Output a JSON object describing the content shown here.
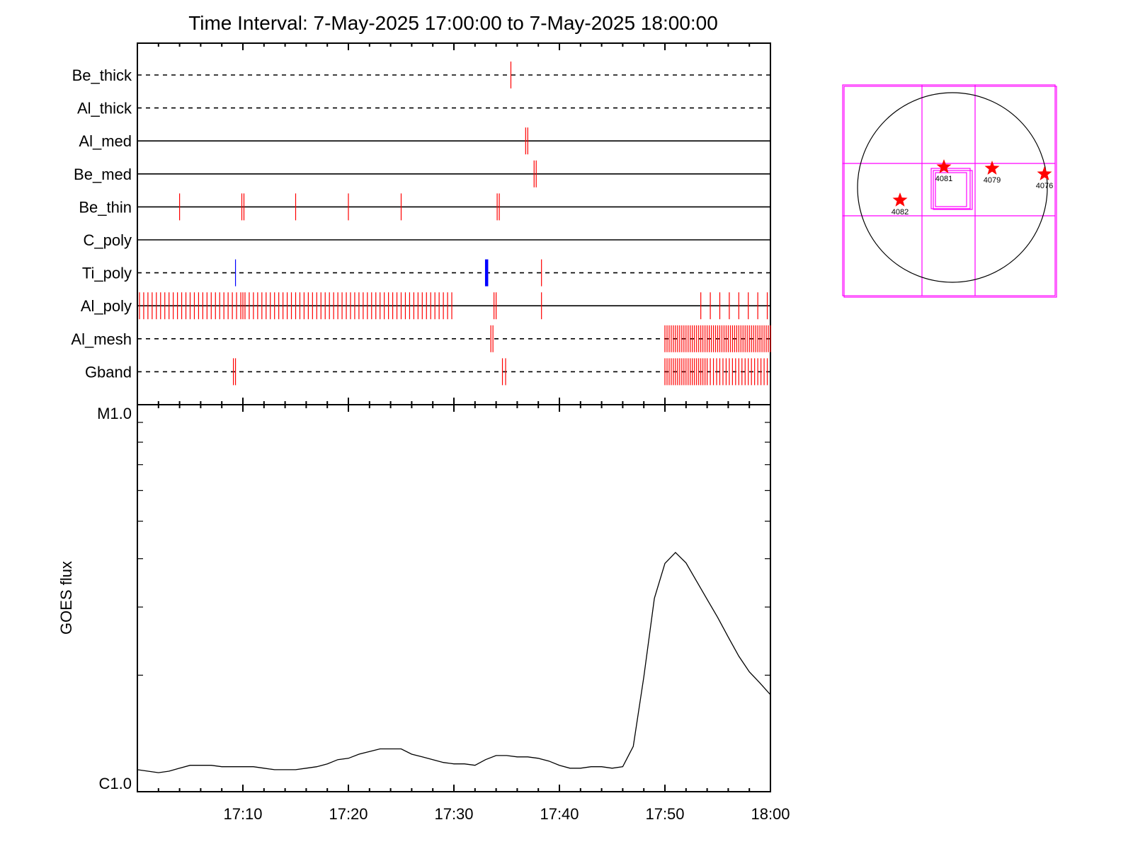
{
  "title": "Time Interval:  7-May-2025 17:00:00 to  7-May-2025 18:00:00",
  "chart_data": [
    {
      "type": "scatter",
      "subtitle": "",
      "x_range_minutes": [
        0,
        60
      ],
      "filters": [
        "Be_thick",
        "Al_thick",
        "Al_med",
        "Be_med",
        "Be_thin",
        "C_poly",
        "Ti_poly",
        "Al_poly",
        "Al_mesh",
        "Gband"
      ],
      "line_styles": [
        "dashed",
        "dashed",
        "solid",
        "solid",
        "solid",
        "solid",
        "dashed",
        "solid",
        "dashed",
        "dashed"
      ],
      "colors": {
        "red": "#ff0000",
        "blue": "#0000ff",
        "magenta": "#ff00ff"
      },
      "events": [
        {
          "filter": "Be_thick",
          "color": "red",
          "minutes": [
            35.4
          ]
        },
        {
          "filter": "Al_thick",
          "color": "red",
          "minutes": []
        },
        {
          "filter": "Al_med",
          "color": "red",
          "minutes": [
            36.8,
            37.0
          ]
        },
        {
          "filter": "Be_med",
          "color": "red",
          "minutes": [
            37.6,
            37.8
          ]
        },
        {
          "filter": "Be_thin",
          "color": "red",
          "minutes": [
            4.0,
            9.9,
            10.1,
            15.0,
            20.0,
            25.0,
            34.1,
            34.3
          ]
        },
        {
          "filter": "C_poly",
          "color": "red",
          "minutes": []
        },
        {
          "filter": "Ti_poly",
          "color": "blue",
          "minutes": [
            9.3
          ]
        },
        {
          "filter": "Ti_poly",
          "color": "blue-thick",
          "minutes": [
            33.1
          ]
        },
        {
          "filter": "Ti_poly",
          "color": "red",
          "minutes": [
            38.3
          ]
        },
        {
          "filter": "Al_poly",
          "color": "red",
          "minutes": [
            0.2,
            0.6,
            1.0,
            1.4,
            1.8,
            2.2,
            2.6,
            3.0,
            3.4,
            3.8,
            4.2,
            4.6,
            5.0,
            5.4,
            5.8,
            6.2,
            6.6,
            7.0,
            7.4,
            7.8,
            8.2,
            8.6,
            9.0,
            9.4,
            9.8,
            10.0,
            10.2,
            10.6,
            11.0,
            11.4,
            11.8,
            12.2,
            12.6,
            13.0,
            13.4,
            13.8,
            14.2,
            14.6,
            15.0,
            15.4,
            15.8,
            16.2,
            16.6,
            17.0,
            17.4,
            17.8,
            18.2,
            18.6,
            19.0,
            19.4,
            19.8,
            20.2,
            20.6,
            21.0,
            21.4,
            21.8,
            22.2,
            22.6,
            23.0,
            23.4,
            23.8,
            24.2,
            24.6,
            25.0,
            25.4,
            25.8,
            26.2,
            26.6,
            27.0,
            27.4,
            27.8,
            28.2,
            28.6,
            29.0,
            29.4,
            29.8,
            33.8,
            34.0,
            38.3,
            53.4,
            54.3,
            55.2,
            56.1,
            57.0,
            57.9,
            58.8,
            59.7
          ]
        },
        {
          "filter": "Al_mesh",
          "color": "red",
          "minutes": [
            33.5,
            33.7,
            50.0,
            50.2,
            50.4,
            50.6,
            50.8,
            51.0,
            51.2,
            51.4,
            51.6,
            51.8,
            52.0,
            52.2,
            52.4,
            52.6,
            52.8,
            53.0,
            53.2,
            53.4,
            53.6,
            53.8,
            54.0,
            54.2,
            54.4,
            54.6,
            54.8,
            55.0,
            55.2,
            55.4,
            55.6,
            55.8,
            56.0,
            56.2,
            56.4,
            56.6,
            56.8,
            57.0,
            57.2,
            57.4,
            57.6,
            57.8,
            58.0,
            58.2,
            58.4,
            58.6,
            58.8,
            59.0,
            59.2,
            59.4,
            59.6,
            59.8,
            60.0
          ]
        },
        {
          "filter": "Gband",
          "color": "red",
          "minutes": [
            9.1,
            9.3,
            34.6,
            34.9,
            50.0,
            50.2,
            50.4,
            50.6,
            50.8,
            51.0,
            51.2,
            51.4,
            51.6,
            51.8,
            52.0,
            52.2,
            52.4,
            52.6,
            52.8,
            53.0,
            53.2,
            53.4,
            53.6,
            53.8,
            54.0,
            54.3,
            54.6,
            54.9,
            55.2,
            55.5,
            55.8,
            56.1,
            56.4,
            56.7,
            57.0,
            57.3,
            57.6,
            57.9,
            58.2,
            58.5,
            58.8,
            59.1,
            59.4,
            59.7
          ]
        }
      ]
    },
    {
      "type": "line",
      "ylabel": "GOES flux",
      "xlabel": "",
      "x_tick_labels": [
        "17:10",
        "17:20",
        "17:30",
        "17:40",
        "17:50",
        "18:00"
      ],
      "x_tick_minutes": [
        10,
        20,
        30,
        40,
        50,
        60
      ],
      "y_tick_labels": [
        "M1.0",
        "C1.0"
      ],
      "y_log_scale": true,
      "ylim": [
        1e-06,
        1e-05
      ],
      "x_range_minutes": [
        0,
        60
      ],
      "series": [
        {
          "x": [
            0,
            1,
            2,
            3,
            4,
            5,
            6,
            7,
            8,
            9,
            10,
            11,
            12,
            13,
            14,
            15,
            16,
            17,
            18,
            19,
            20,
            21,
            22,
            23,
            24,
            25,
            26,
            27,
            28,
            29,
            30,
            31,
            32,
            33,
            34,
            35,
            36,
            37,
            38,
            39,
            40,
            41,
            42,
            43,
            44,
            45,
            46,
            47,
            48,
            49,
            50,
            51,
            52,
            53,
            54,
            55,
            56,
            57,
            58,
            59,
            60
          ],
          "y": [
            1.14e-06,
            1.13e-06,
            1.12e-06,
            1.13e-06,
            1.15e-06,
            1.17e-06,
            1.17e-06,
            1.17e-06,
            1.16e-06,
            1.16e-06,
            1.16e-06,
            1.16e-06,
            1.15e-06,
            1.14e-06,
            1.14e-06,
            1.14e-06,
            1.15e-06,
            1.16e-06,
            1.18e-06,
            1.21e-06,
            1.22e-06,
            1.25e-06,
            1.27e-06,
            1.29e-06,
            1.29e-06,
            1.29e-06,
            1.25e-06,
            1.23e-06,
            1.21e-06,
            1.19e-06,
            1.18e-06,
            1.18e-06,
            1.17e-06,
            1.21e-06,
            1.24e-06,
            1.24e-06,
            1.23e-06,
            1.23e-06,
            1.22e-06,
            1.2e-06,
            1.17e-06,
            1.15e-06,
            1.15e-06,
            1.16e-06,
            1.16e-06,
            1.15e-06,
            1.16e-06,
            1.31e-06,
            1.98e-06,
            3.16e-06,
            3.89e-06,
            4.15e-06,
            3.9e-06,
            3.5e-06,
            3.14e-06,
            2.82e-06,
            2.51e-06,
            2.24e-06,
            2.04e-06,
            1.91e-06,
            1.78e-06
          ]
        }
      ]
    }
  ],
  "sun_map": {
    "regions": [
      {
        "label": "4081"
      },
      {
        "label": "4079"
      },
      {
        "label": "4076"
      },
      {
        "label": "4082"
      }
    ]
  }
}
